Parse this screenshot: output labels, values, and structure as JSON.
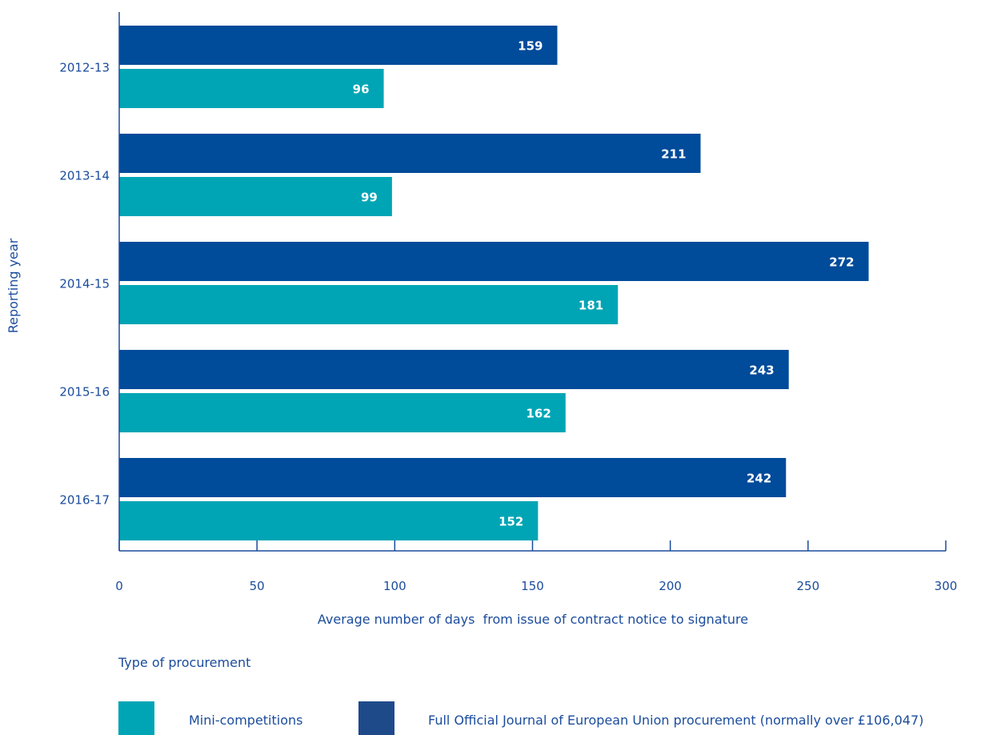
{
  "chart_data": {
    "type": "bar",
    "orientation": "horizontal",
    "categories": [
      "2012-13",
      "2013-14",
      "2014-15",
      "2015-16",
      "2016-17"
    ],
    "series": [
      {
        "name": "Full Official Journal of European Union procurement (normally over £106,047)",
        "values": [
          159,
          211,
          272,
          243,
          242
        ],
        "color": "#004b9a"
      },
      {
        "name": "Mini-competitions",
        "values": [
          96,
          99,
          181,
          162,
          152
        ],
        "color": "#00a5b5"
      }
    ],
    "xlabel": "Average number of days  from issue of contract notice to signature",
    "ylabel": "Reporting year",
    "xlim": [
      0,
      300
    ],
    "xticks": [
      "0",
      "50",
      "100",
      "150",
      "200",
      "250",
      "300"
    ],
    "data_labels": true,
    "grid": false,
    "legend": {
      "title": "Type of procurement",
      "position": "bottom-left",
      "items": [
        {
          "label": "Mini-competitions",
          "color": "#00a5b5"
        },
        {
          "label": "Full Official Journal of European Union procurement (normally over £106,047)",
          "color": "#1f4a8a"
        }
      ]
    },
    "axis_color": "#1b4c9c"
  }
}
